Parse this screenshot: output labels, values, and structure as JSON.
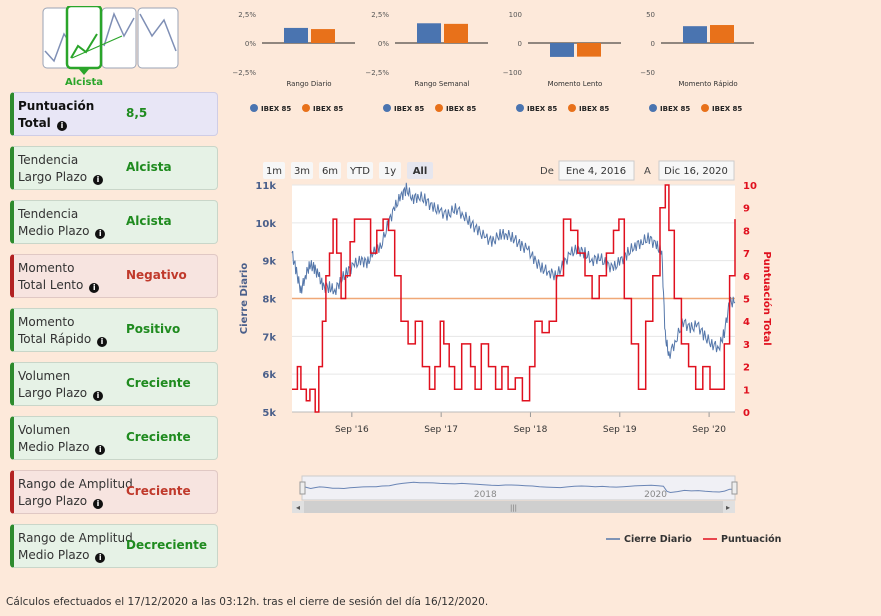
{
  "logo": {
    "label": "Alcista"
  },
  "cards": [
    {
      "label1": "Puntuación",
      "label2": "Total",
      "value": "8,5",
      "kind": "total"
    },
    {
      "label1": "Tendencia",
      "label2": "Largo Plazo",
      "value": "Alcista",
      "kind": "pos"
    },
    {
      "label1": "Tendencia",
      "label2": "Medio Plazo",
      "value": "Alcista",
      "kind": "pos"
    },
    {
      "label1": "Momento",
      "label2": "Total Lento",
      "value": "Negativo",
      "kind": "neg"
    },
    {
      "label1": "Momento",
      "label2": "Total Rápido",
      "value": "Positivo",
      "kind": "pos"
    },
    {
      "label1": "Volumen",
      "label2": "Largo Plazo",
      "value": "Creciente",
      "kind": "pos"
    },
    {
      "label1": "Volumen",
      "label2": "Medio Plazo",
      "value": "Creciente",
      "kind": "pos"
    },
    {
      "label1": "Rango de Amplitud",
      "label2": "Largo Plazo",
      "value": "Creciente",
      "kind": "neg"
    },
    {
      "label1": "Rango de Amplitud",
      "label2": "Medio Plazo",
      "value": "Decreciente",
      "kind": "pos"
    }
  ],
  "footer": "Cálculos efectuados el 17/12/2020 a las 03:12h. tras el cierre de sesión del día 16/12/2020.",
  "colors": {
    "blue": "#4a74b0",
    "orange": "#e8711a",
    "red": "#e0101e",
    "price": "#5577aa",
    "avg": "#f0a877"
  },
  "chart_data": [
    {
      "type": "bar",
      "title": "Rango Diario",
      "ticks": [
        "2,5%",
        "0%",
        "−2,5%"
      ],
      "ylim": [
        -2.5,
        2.5
      ],
      "series": [
        {
          "name": "IBEX 85",
          "values": [
            1.3
          ]
        },
        {
          "name": "IBEX 85",
          "values": [
            1.2
          ]
        }
      ]
    },
    {
      "type": "bar",
      "title": "Rango Semanal",
      "ticks": [
        "2,5%",
        "0%",
        "−2,5%"
      ],
      "ylim": [
        -2.5,
        2.5
      ],
      "series": [
        {
          "name": "IBEX 85",
          "values": [
            1.7
          ]
        },
        {
          "name": "IBEX 85",
          "values": [
            1.65
          ]
        }
      ]
    },
    {
      "type": "bar",
      "title": "Momento Lento",
      "ticks": [
        "100",
        "0",
        "−100"
      ],
      "ylim": [
        -100,
        100
      ],
      "series": [
        {
          "name": "IBEX 85",
          "values": [
            -48
          ]
        },
        {
          "name": "IBEX 85",
          "values": [
            -47
          ]
        }
      ]
    },
    {
      "type": "bar",
      "title": "Momento Rápido",
      "ticks": [
        "50",
        "0",
        "−50"
      ],
      "ylim": [
        -50,
        50
      ],
      "series": [
        {
          "name": "IBEX 85",
          "values": [
            29
          ]
        },
        {
          "name": "IBEX 85",
          "values": [
            31
          ]
        }
      ]
    },
    {
      "type": "line",
      "range_buttons": [
        "1m",
        "3m",
        "6m",
        "YTD",
        "1y",
        "All"
      ],
      "selected_range": "All",
      "from_label": "De",
      "from_value": "Ene 4, 2016",
      "to_label": "A",
      "to_value": "Dic 16, 2020",
      "ylabel_left": "Cierre Diario",
      "ylabel_right": "Puntuación Total",
      "left_ticks": [
        "11k",
        "10k",
        "9k",
        "8k",
        "7k",
        "6k",
        "5k"
      ],
      "left_ylim": [
        5000,
        11000
      ],
      "right_ticks": [
        "10",
        "9",
        "8",
        "7",
        "6",
        "5",
        "4",
        "3",
        "2",
        "1",
        "0"
      ],
      "right_ylim": [
        0,
        10
      ],
      "x_ticks": [
        "Sep '16",
        "Sep '17",
        "Sep '18",
        "Sep '19",
        "Sep '20"
      ],
      "x_tick_pos": [
        2016.67,
        2017.67,
        2018.67,
        2019.67,
        2020.67
      ],
      "xlim": [
        2016.0,
        2020.96
      ],
      "nav_labels": [
        "2018",
        "2020"
      ],
      "average_line": 8000,
      "series": [
        {
          "name": "Cierre Diario",
          "x": [
            2016.0,
            2016.05,
            2016.1,
            2016.15,
            2016.2,
            2016.25,
            2016.3,
            2016.35,
            2016.42,
            2016.48,
            2016.55,
            2016.62,
            2016.7,
            2016.78,
            2016.85,
            2016.92,
            2017.0,
            2017.08,
            2017.15,
            2017.22,
            2017.28,
            2017.35,
            2017.42,
            2017.5,
            2017.58,
            2017.66,
            2017.75,
            2017.83,
            2017.92,
            2018.0,
            2018.08,
            2018.17,
            2018.25,
            2018.33,
            2018.4,
            2018.48,
            2018.56,
            2018.64,
            2018.72,
            2018.8,
            2018.88,
            2018.96,
            2019.04,
            2019.12,
            2019.2,
            2019.28,
            2019.36,
            2019.44,
            2019.52,
            2019.6,
            2019.68,
            2019.76,
            2019.84,
            2019.92,
            2020.0,
            2020.08,
            2020.14,
            2020.18,
            2020.22,
            2020.3,
            2020.38,
            2020.46,
            2020.54,
            2020.62,
            2020.7,
            2020.78,
            2020.84,
            2020.9,
            2020.96
          ],
          "values": [
            9200,
            8700,
            8200,
            8600,
            8900,
            8800,
            8600,
            8300,
            8300,
            8200,
            8500,
            8700,
            8900,
            9000,
            8950,
            9300,
            9400,
            10000,
            10400,
            10700,
            10900,
            10650,
            10700,
            10600,
            10400,
            10300,
            10200,
            10400,
            10200,
            10000,
            9800,
            9600,
            9500,
            9700,
            9700,
            9600,
            9400,
            9300,
            9000,
            8800,
            8700,
            8600,
            8900,
            9200,
            9300,
            9200,
            9000,
            9100,
            8900,
            8800,
            9000,
            9200,
            9400,
            9500,
            9600,
            9400,
            9200,
            7000,
            6500,
            6900,
            7400,
            7200,
            7300,
            7000,
            6800,
            6700,
            7100,
            7900,
            7900
          ]
        },
        {
          "name": "Puntuación",
          "x": [
            2016.0,
            2016.06,
            2016.1,
            2016.16,
            2016.2,
            2016.26,
            2016.3,
            2016.34,
            2016.38,
            2016.42,
            2016.46,
            2016.5,
            2016.55,
            2016.6,
            2016.65,
            2016.7,
            2016.8,
            2016.88,
            2016.95,
            2017.02,
            2017.08,
            2017.15,
            2017.22,
            2017.3,
            2017.38,
            2017.46,
            2017.54,
            2017.6,
            2017.66,
            2017.7,
            2017.76,
            2017.82,
            2017.9,
            2018.0,
            2018.05,
            2018.12,
            2018.2,
            2018.28,
            2018.35,
            2018.42,
            2018.5,
            2018.58,
            2018.66,
            2018.72,
            2018.8,
            2018.88,
            2018.96,
            2019.04,
            2019.12,
            2019.2,
            2019.28,
            2019.36,
            2019.44,
            2019.52,
            2019.6,
            2019.66,
            2019.72,
            2019.8,
            2019.88,
            2019.96,
            2020.04,
            2020.12,
            2020.18,
            2020.22,
            2020.28,
            2020.36,
            2020.44,
            2020.52,
            2020.6,
            2020.68,
            2020.76,
            2020.84,
            2020.9,
            2020.96
          ],
          "values": [
            1,
            2,
            1,
            0.5,
            1,
            0,
            2,
            4,
            6,
            7,
            8.5,
            7,
            5,
            6,
            7.5,
            8.5,
            8.5,
            7,
            8,
            8.5,
            8,
            6,
            4,
            3,
            4,
            2,
            1,
            2,
            4,
            3,
            2,
            1,
            3,
            2,
            1,
            3,
            2,
            1,
            2,
            1,
            1.5,
            0.5,
            2,
            4,
            3.5,
            4,
            6,
            8.5,
            8,
            7,
            6,
            5,
            6,
            7,
            8,
            8.5,
            5,
            3,
            1,
            4,
            6,
            9,
            10,
            8,
            5,
            3,
            2,
            1,
            2,
            1,
            1,
            3,
            6,
            8.5
          ]
        }
      ]
    }
  ]
}
